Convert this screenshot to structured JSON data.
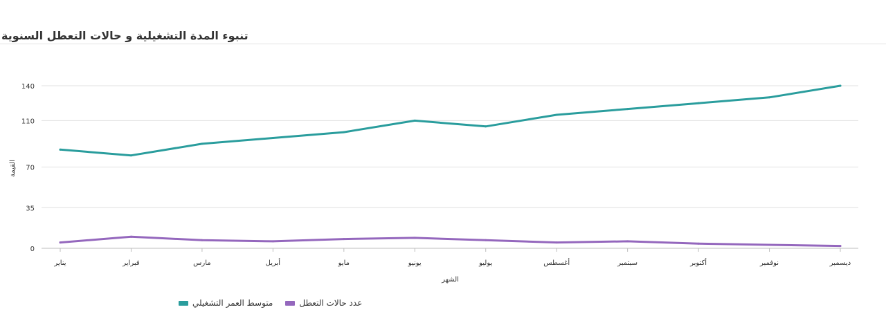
{
  "header": {
    "title": "تنبوء المدة التشغيلية و حالات التعطل السنوية"
  },
  "chart_data": {
    "type": "line",
    "categories": [
      "يناير",
      "فبراير",
      "مارس",
      "أبريل",
      "مايو",
      "يونيو",
      "يوليو",
      "أغسطس",
      "سبتمبر",
      "أكتوبر",
      "نوفمبر",
      "ديسمبر"
    ],
    "series": [
      {
        "name": "متوسط العمر التشغيلي",
        "color": "#2a9d9d",
        "values": [
          85,
          80,
          90,
          95,
          100,
          110,
          105,
          115,
          120,
          125,
          130,
          140
        ]
      },
      {
        "name": "عدد حالات التعطل",
        "color": "#9467bd",
        "values": [
          5,
          10,
          7,
          6,
          8,
          9,
          7,
          5,
          6,
          4,
          3,
          2
        ]
      }
    ],
    "yticks": [
      0,
      35,
      70,
      110,
      140
    ],
    "ylim": [
      0,
      140
    ],
    "xlabel": "الشهر",
    "ylabel": "القيمة",
    "grid": true,
    "legend": "bottom-left"
  }
}
